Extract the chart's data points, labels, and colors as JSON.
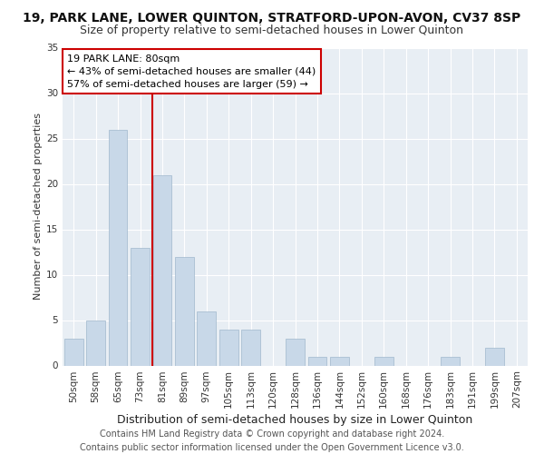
{
  "title_line1": "19, PARK LANE, LOWER QUINTON, STRATFORD-UPON-AVON, CV37 8SP",
  "title_line2": "Size of property relative to semi-detached houses in Lower Quinton",
  "xlabel": "Distribution of semi-detached houses by size in Lower Quinton",
  "ylabel": "Number of semi-detached properties",
  "categories": [
    "50sqm",
    "58sqm",
    "65sqm",
    "73sqm",
    "81sqm",
    "89sqm",
    "97sqm",
    "105sqm",
    "113sqm",
    "120sqm",
    "128sqm",
    "136sqm",
    "144sqm",
    "152sqm",
    "160sqm",
    "168sqm",
    "176sqm",
    "183sqm",
    "191sqm",
    "199sqm",
    "207sqm"
  ],
  "values": [
    3,
    5,
    26,
    13,
    21,
    12,
    6,
    4,
    4,
    0,
    3,
    1,
    1,
    0,
    1,
    0,
    0,
    1,
    0,
    2,
    0
  ],
  "bar_color": "#c8d8e8",
  "bar_edgecolor": "#a0b8cc",
  "vline_x_index": 4,
  "vline_color": "#cc0000",
  "annotation_text": "19 PARK LANE: 80sqm\n← 43% of semi-detached houses are smaller (44)\n57% of semi-detached houses are larger (59) →",
  "annotation_box_edgecolor": "#cc0000",
  "ylim": [
    0,
    35
  ],
  "yticks": [
    0,
    5,
    10,
    15,
    20,
    25,
    30,
    35
  ],
  "background_color": "#e8eef4",
  "footer_text": "Contains HM Land Registry data © Crown copyright and database right 2024.\nContains public sector information licensed under the Open Government Licence v3.0.",
  "title_fontsize": 10,
  "subtitle_fontsize": 9,
  "footer_fontsize": 7,
  "ylabel_fontsize": 8,
  "xlabel_fontsize": 9,
  "tick_fontsize": 7.5,
  "annotation_fontsize": 8
}
